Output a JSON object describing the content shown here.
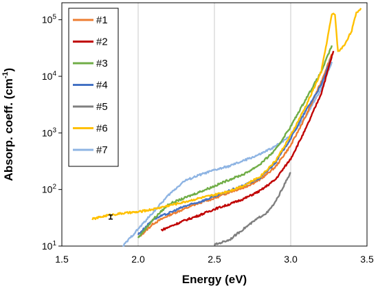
{
  "chart_data": {
    "type": "line",
    "xlabel": "Energy (eV)",
    "ylabel": {
      "main": "Absorp. coeff. (cm",
      "sup": "-1",
      "close": ")"
    },
    "xlim": [
      1.5,
      3.5
    ],
    "ylim_log10": [
      1,
      5.3
    ],
    "y_scale": "log",
    "grid": "vertical-only",
    "legend_position": "top-left",
    "x_ticks": [
      {
        "value": 1.5,
        "label": "1.5"
      },
      {
        "value": 2.0,
        "label": "2.0"
      },
      {
        "value": 2.5,
        "label": "2.5"
      },
      {
        "value": 3.0,
        "label": "3.0"
      },
      {
        "value": 3.5,
        "label": "3.5"
      }
    ],
    "y_ticks": [
      {
        "exp": 1,
        "base": "10",
        "sup": "1"
      },
      {
        "exp": 2,
        "base": "10",
        "sup": "2"
      },
      {
        "exp": 3,
        "base": "10",
        "sup": "3"
      },
      {
        "exp": 4,
        "base": "10",
        "sup": "4"
      },
      {
        "exp": 5,
        "base": "10",
        "sup": "5"
      }
    ],
    "error_bar": {
      "x": 1.82,
      "y_low": 30,
      "y_high": 35.5
    },
    "series": [
      {
        "name": "#1",
        "color": "#ED7D31",
        "x": [
          2.0,
          2.1,
          2.2,
          2.3,
          2.4,
          2.5,
          2.6,
          2.7,
          2.8,
          2.9,
          3.0,
          3.1,
          3.2,
          3.27
        ],
        "y": [
          14,
          25,
          35,
          45,
          58,
          70,
          90,
          110,
          150,
          250,
          600,
          2000,
          8000,
          25000
        ]
      },
      {
        "name": "#2",
        "color": "#C00000",
        "x": [
          2.15,
          2.3,
          2.4,
          2.5,
          2.6,
          2.7,
          2.8,
          2.9,
          3.0,
          3.1,
          3.2,
          3.28
        ],
        "y": [
          19,
          28,
          35,
          45,
          55,
          70,
          95,
          150,
          350,
          1200,
          5000,
          28000
        ]
      },
      {
        "name": "#3",
        "color": "#70AD47",
        "x": [
          2.0,
          2.1,
          2.2,
          2.3,
          2.4,
          2.5,
          2.6,
          2.7,
          2.8,
          2.9,
          3.0,
          3.1,
          3.2,
          3.27
        ],
        "y": [
          14,
          30,
          55,
          70,
          90,
          115,
          150,
          190,
          280,
          500,
          1300,
          4000,
          12000,
          35000
        ]
      },
      {
        "name": "#4",
        "color": "#4472C4",
        "x": [
          2.0,
          2.1,
          2.2,
          2.3,
          2.4,
          2.5,
          2.6,
          2.7,
          2.8,
          2.9,
          3.0,
          3.1,
          3.2,
          3.27
        ],
        "y": [
          16,
          30,
          38,
          50,
          60,
          75,
          95,
          120,
          160,
          300,
          800,
          2500,
          7000,
          22000
        ]
      },
      {
        "name": "#5",
        "color": "#7F7F7F",
        "x": [
          2.5,
          2.6,
          2.7,
          2.8,
          2.85,
          2.9,
          2.95,
          3.0
        ],
        "y": [
          10.5,
          13,
          21,
          33,
          40,
          60,
          110,
          200
        ]
      },
      {
        "name": "#6",
        "color": "#FFC000",
        "x": [
          1.7,
          1.8,
          1.9,
          2.0,
          2.1,
          2.2,
          2.3,
          2.4,
          2.5,
          2.6,
          2.7,
          2.8,
          2.9,
          3.0,
          3.1,
          3.2,
          3.27,
          3.29,
          3.31,
          3.35,
          3.4,
          3.43,
          3.46
        ],
        "y": [
          30,
          35,
          38,
          40,
          45,
          52,
          60,
          70,
          80,
          95,
          120,
          170,
          320,
          900,
          3000,
          12000,
          125000,
          125000,
          27000,
          35000,
          65000,
          130000,
          160000
        ]
      },
      {
        "name": "#7",
        "color": "#8EB4E3",
        "x": [
          1.9,
          2.0,
          2.1,
          2.2,
          2.3,
          2.4,
          2.5,
          2.6,
          2.7,
          2.8,
          2.9,
          3.0,
          3.1,
          3.2,
          3.27
        ],
        "y": [
          10,
          20,
          40,
          80,
          140,
          180,
          220,
          260,
          330,
          420,
          580,
          900,
          2000,
          6000,
          18000
        ]
      }
    ]
  }
}
